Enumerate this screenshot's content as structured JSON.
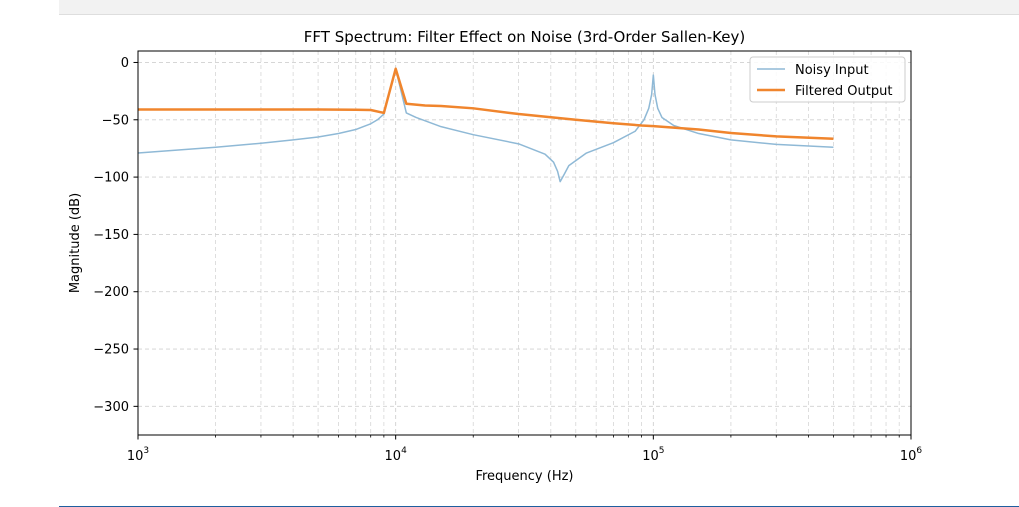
{
  "chart_data": {
    "type": "line",
    "title": "FFT Spectrum: Filter Effect on Noise (3rd-Order Sallen-Key)",
    "xlabel": "Frequency (Hz)",
    "ylabel": "Magnitude (dB)",
    "xscale": "log",
    "xlim": [
      1000,
      1000000
    ],
    "ylim": [
      -325,
      10
    ],
    "x_ticks": [
      {
        "value": 1000,
        "base": "10",
        "exp": "3"
      },
      {
        "value": 10000,
        "base": "10",
        "exp": "4"
      },
      {
        "value": 100000,
        "base": "10",
        "exp": "5"
      },
      {
        "value": 1000000,
        "base": "10",
        "exp": "6"
      }
    ],
    "y_ticks": [
      0,
      -50,
      -100,
      -150,
      -200,
      -250,
      -300
    ],
    "y_tick_labels": [
      "0",
      "−50",
      "−100",
      "−150",
      "−200",
      "−250",
      "−300"
    ],
    "grid": true,
    "legend_position": "top-right",
    "series": [
      {
        "name": "Noisy Input",
        "color": "#8fb9d6",
        "points": [
          [
            1000,
            -79
          ],
          [
            1500,
            -76
          ],
          [
            2000,
            -74
          ],
          [
            3000,
            -70.5
          ],
          [
            4000,
            -67.5
          ],
          [
            5000,
            -65
          ],
          [
            6000,
            -62
          ],
          [
            7000,
            -58.5
          ],
          [
            8000,
            -53.5
          ],
          [
            8500,
            -50
          ],
          [
            9000,
            -45
          ],
          [
            10000,
            -5.5
          ],
          [
            11000,
            -44
          ],
          [
            12000,
            -48
          ],
          [
            15000,
            -56
          ],
          [
            20000,
            -63
          ],
          [
            30000,
            -71
          ],
          [
            38000,
            -80
          ],
          [
            41000,
            -87
          ],
          [
            42500,
            -95
          ],
          [
            43500,
            -104
          ],
          [
            45000,
            -98
          ],
          [
            47000,
            -90
          ],
          [
            55000,
            -79
          ],
          [
            70000,
            -70
          ],
          [
            85000,
            -60
          ],
          [
            92000,
            -50
          ],
          [
            96000,
            -40
          ],
          [
            98500,
            -28
          ],
          [
            100000,
            -11
          ],
          [
            101500,
            -28
          ],
          [
            104000,
            -40
          ],
          [
            108000,
            -48
          ],
          [
            120000,
            -55
          ],
          [
            150000,
            -62
          ],
          [
            200000,
            -67.5
          ],
          [
            300000,
            -71.5
          ],
          [
            500000,
            -74
          ]
        ]
      },
      {
        "name": "Filtered Output",
        "color": "#f0852d",
        "points": [
          [
            1000,
            -41
          ],
          [
            2000,
            -41
          ],
          [
            5000,
            -41
          ],
          [
            7000,
            -41.2
          ],
          [
            8000,
            -41.5
          ],
          [
            9000,
            -44
          ],
          [
            10000,
            -5.5
          ],
          [
            11000,
            -36
          ],
          [
            13000,
            -37.5
          ],
          [
            15000,
            -38
          ],
          [
            20000,
            -40
          ],
          [
            30000,
            -45
          ],
          [
            50000,
            -50
          ],
          [
            70000,
            -53
          ],
          [
            90000,
            -55
          ],
          [
            100000,
            -55.5
          ],
          [
            150000,
            -58.5
          ],
          [
            200000,
            -61.5
          ],
          [
            300000,
            -64.5
          ],
          [
            500000,
            -66.5
          ]
        ]
      }
    ]
  }
}
